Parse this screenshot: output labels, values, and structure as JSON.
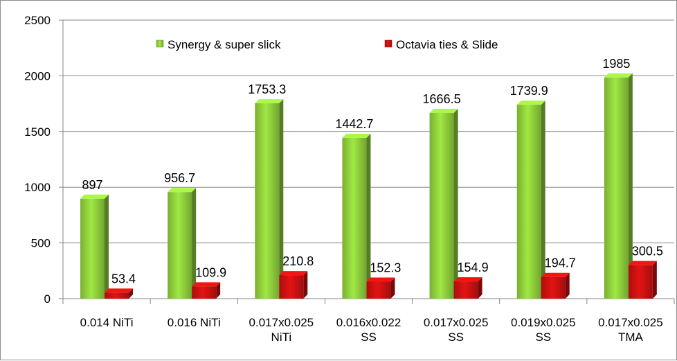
{
  "chart_data": {
    "type": "bar",
    "categories": [
      [
        "0.014 NiTi"
      ],
      [
        "0.016 NiTi"
      ],
      [
        "0.017x0.025",
        "NiTi"
      ],
      [
        "0.016x0.022",
        "SS"
      ],
      [
        "0.017x0.025",
        "SS"
      ],
      [
        "0.019x0.025",
        "SS"
      ],
      [
        "0.017x0.025",
        "TMA"
      ]
    ],
    "series": [
      {
        "name": "Synergy & super slick",
        "color": "#8fcf3c",
        "values": [
          897,
          956.7,
          1753.3,
          1442.7,
          1666.5,
          1739.9,
          1985
        ],
        "labels": [
          "897",
          "956.7",
          "1753.3",
          "1442.7",
          "1666.5",
          "1739.9",
          "1985"
        ]
      },
      {
        "name": "Octavia ties & Slide",
        "color": "#cc1111",
        "values": [
          53.4,
          109.9,
          210.8,
          152.3,
          154.9,
          194.7,
          300.5
        ],
        "labels": [
          "53.4",
          "109.9",
          "210.8",
          "152.3",
          "154.9",
          "194.7",
          "300.5"
        ]
      }
    ],
    "ylim": [
      0,
      2500
    ],
    "yticks": [
      0,
      500,
      1000,
      1500,
      2000,
      2500
    ],
    "grid": true,
    "legend": "top-center",
    "title": "",
    "xlabel": "",
    "ylabel": ""
  }
}
